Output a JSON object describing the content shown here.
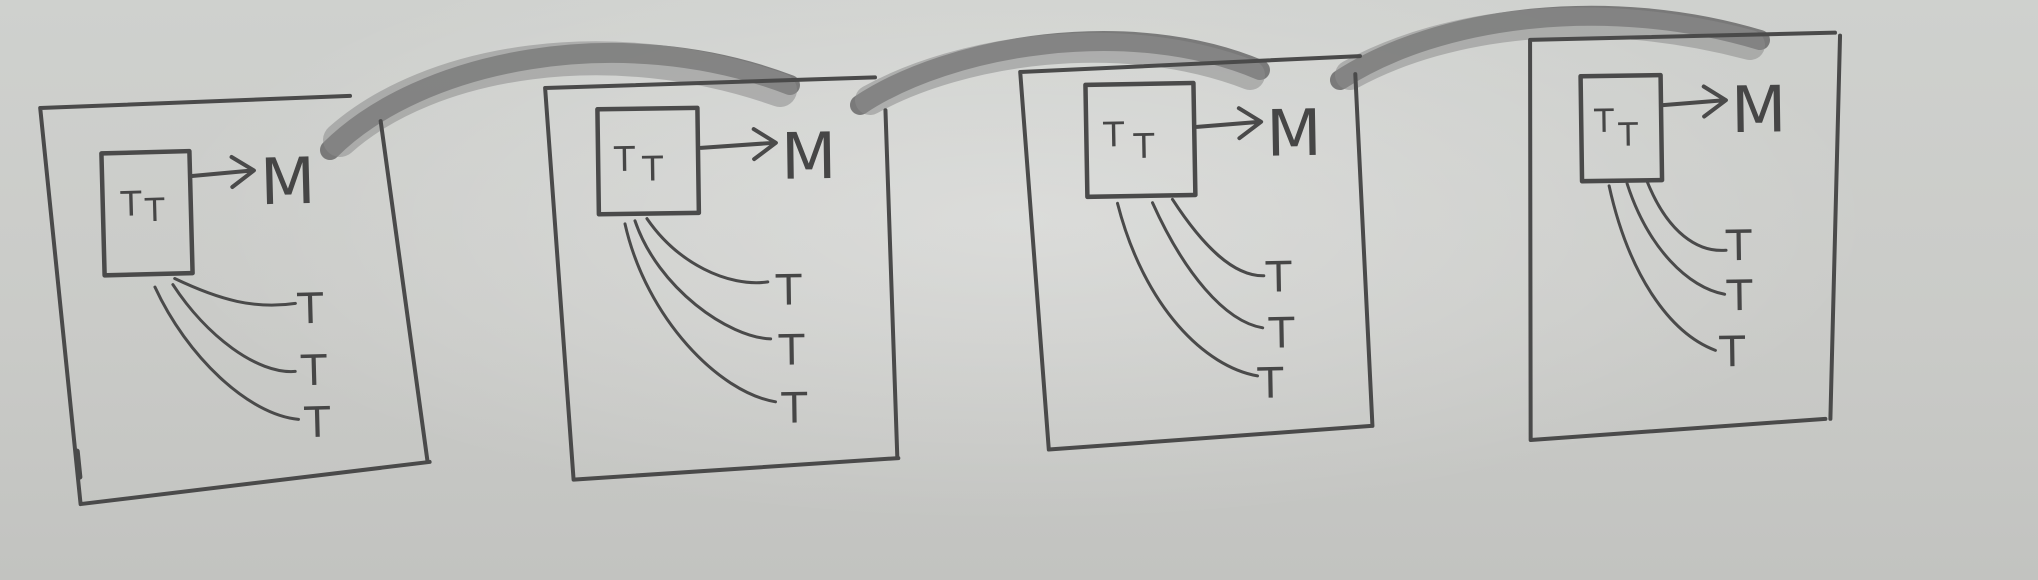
{
  "scene": "whiteboard-sketch",
  "colors": {
    "board": "#cacbc8",
    "marker": "#4a4a4a",
    "smudge": "#6a6a6a"
  },
  "labels": {
    "thread": "T",
    "manager": "M"
  },
  "panels": [
    {
      "id": 1
    },
    {
      "id": 2
    },
    {
      "id": 3
    },
    {
      "id": 4
    }
  ]
}
